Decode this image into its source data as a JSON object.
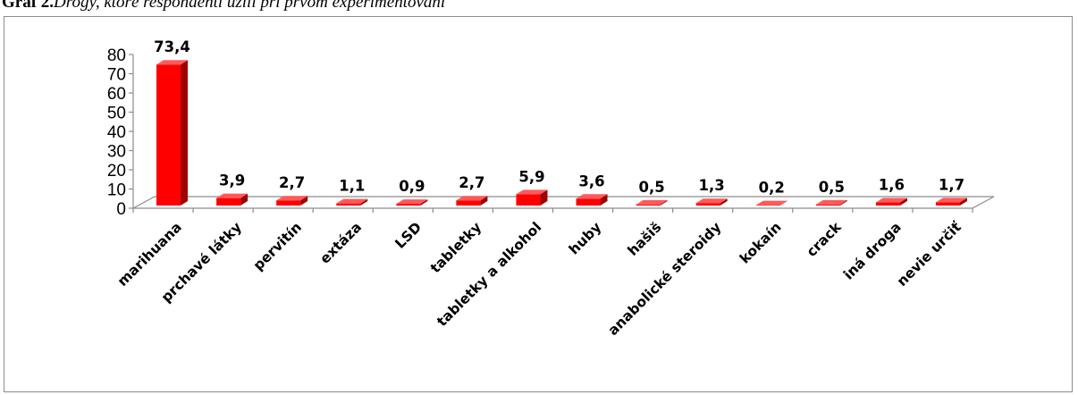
{
  "caption": {
    "label": "Graf 2.",
    "text": "Drogy, ktoré respondenti užili pri prvom experimentovaní"
  },
  "colors": {
    "bar_front": "#ff0000",
    "bar_side": "#a00000",
    "bar_top": "#ff5a5a",
    "floor": "#ffffff",
    "axis": "#8c8c8c"
  },
  "chart_data": {
    "type": "bar",
    "title": "",
    "xlabel": "",
    "ylabel": "",
    "ylim": [
      0,
      80
    ],
    "yticks": [
      0,
      10,
      20,
      30,
      40,
      50,
      60,
      70,
      80
    ],
    "grid": false,
    "legend": "none",
    "categories": [
      "marihuana",
      "prchavé látky",
      "pervitín",
      "extáza",
      "LSD",
      "tabletky",
      "tabletky a alkohol",
      "huby",
      "hašiš",
      "anabolické steroidy",
      "kokaín",
      "crack",
      "iná droga",
      "nevie určiť"
    ],
    "values": [
      73.4,
      3.9,
      2.7,
      1.1,
      0.9,
      2.7,
      5.9,
      3.6,
      0.5,
      1.3,
      0.2,
      0.5,
      1.6,
      1.7
    ],
    "data_labels": [
      "73,4",
      "3,9",
      "2,7",
      "1,1",
      "0,9",
      "2,7",
      "5,9",
      "3,6",
      "0,5",
      "1,3",
      "0,2",
      "0,5",
      "1,6",
      "1,7"
    ]
  }
}
